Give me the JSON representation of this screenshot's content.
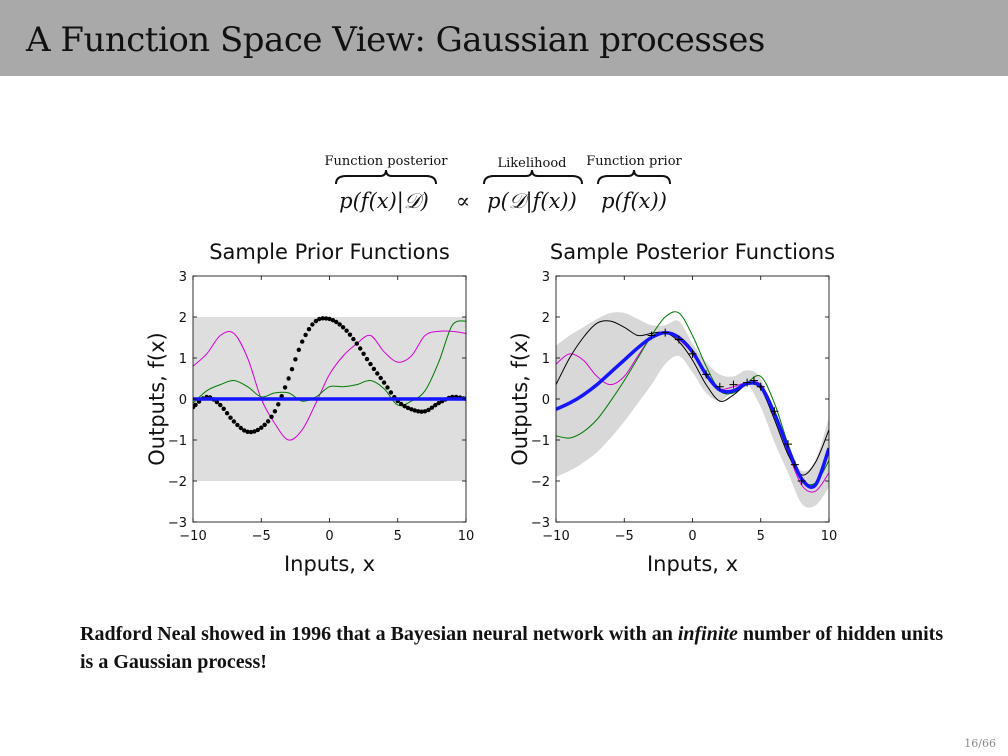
{
  "slide": {
    "title": "A Function Space View: Gaussian processes",
    "page_number": "16/66"
  },
  "equation": {
    "label_posterior": "Function posterior",
    "label_likelihood": "Likelihood",
    "label_prior": "Function prior",
    "posterior": "p(f(x)|𝒟)",
    "propto": "∝",
    "likelihood": "p(𝒟|f(x))",
    "prior": "p(f(x))"
  },
  "caption": {
    "part1": "Radford Neal showed in 1996 that a Bayesian neural network with an ",
    "emph": "infinite",
    "part2": " number of hidden units is a Gaussian process!"
  },
  "chart_data": [
    {
      "type": "line",
      "title": "Sample Prior Functions",
      "xlabel": "Inputs, x",
      "ylabel": "Outputs, f(x)",
      "xlim": [
        -10,
        10
      ],
      "ylim": [
        -3,
        3
      ],
      "xticks": [
        "−10",
        "−5",
        "0",
        "5",
        "10"
      ],
      "yticks": [
        "−3",
        "−2",
        "−1",
        "0",
        "1",
        "2",
        "3"
      ],
      "band": {
        "x": [
          -10,
          10
        ],
        "lower": [
          -2,
          -2
        ],
        "upper": [
          2,
          2
        ],
        "color": "#dedede"
      },
      "series": [
        {
          "color": "#d400d4",
          "style": "thin",
          "x": [
            -10,
            -9,
            -8,
            -7,
            -6,
            -5,
            -4,
            -3,
            -2,
            -1,
            0,
            1,
            2,
            3,
            4,
            5,
            6,
            7,
            8,
            9,
            10
          ],
          "y": [
            0.8,
            1.1,
            1.55,
            1.6,
            1.0,
            0.0,
            -0.6,
            -1.0,
            -0.75,
            -0.1,
            0.6,
            1.05,
            1.35,
            1.55,
            1.15,
            0.9,
            1.05,
            1.55,
            1.65,
            1.65,
            1.6
          ]
        },
        {
          "color": "#007a00",
          "style": "thin",
          "x": [
            -10,
            -9,
            -8,
            -7,
            -6,
            -5,
            -4,
            -3,
            -2,
            -1,
            0,
            1,
            2,
            3,
            4,
            5,
            6,
            7,
            8,
            9,
            10
          ],
          "y": [
            -0.1,
            0.2,
            0.35,
            0.45,
            0.3,
            0.05,
            0.15,
            0.15,
            -0.05,
            0.05,
            0.3,
            0.3,
            0.35,
            0.45,
            0.25,
            -0.15,
            -0.05,
            0.2,
            0.9,
            1.8,
            1.9
          ]
        },
        {
          "color": "#000000",
          "style": "dotted",
          "x": [
            -10,
            -9,
            -8,
            -7,
            -6,
            -5,
            -4,
            -3,
            -2,
            -1,
            0,
            1,
            2,
            3,
            4,
            5,
            6,
            7,
            8,
            9,
            10
          ],
          "y": [
            -0.2,
            0.05,
            -0.15,
            -0.55,
            -0.8,
            -0.7,
            -0.3,
            0.5,
            1.4,
            1.9,
            1.95,
            1.75,
            1.35,
            0.85,
            0.4,
            -0.05,
            -0.25,
            -0.3,
            -0.1,
            0.05,
            0.0
          ]
        },
        {
          "color": "#1515ff",
          "style": "thick",
          "x": [
            -10,
            10
          ],
          "y": [
            0,
            0
          ]
        }
      ]
    },
    {
      "type": "line",
      "title": "Sample Posterior Functions",
      "xlabel": "Inputs, x",
      "ylabel": "Outputs, f(x)",
      "xlim": [
        -10,
        10
      ],
      "ylim": [
        -3,
        3
      ],
      "xticks": [
        "−10",
        "−5",
        "0",
        "5",
        "10"
      ],
      "yticks": [
        "−3",
        "−2",
        "−1",
        "0",
        "1",
        "2",
        "3"
      ],
      "band": {
        "x": [
          -10,
          -9,
          -8,
          -7,
          -6,
          -5,
          -4,
          -3,
          -2,
          -1,
          0,
          1,
          2,
          3,
          4,
          5,
          6,
          7,
          8,
          9,
          10
        ],
        "lower": [
          -1.9,
          -1.75,
          -1.55,
          -1.3,
          -0.95,
          -0.55,
          -0.1,
          0.35,
          0.85,
          1.05,
          0.65,
          0.15,
          -0.05,
          0.2,
          0.35,
          -0.2,
          -1.05,
          -1.8,
          -2.55,
          -2.6,
          -2.15
        ],
        "upper": [
          1.3,
          1.55,
          1.75,
          1.95,
          2.1,
          2.1,
          1.95,
          1.8,
          1.8,
          1.9,
          1.35,
          0.9,
          0.6,
          0.55,
          0.7,
          0.5,
          -0.45,
          -1.2,
          -1.75,
          -1.5,
          -0.45
        ],
        "color": "#d8d8d8"
      },
      "points": {
        "x": [
          -3,
          -2,
          -1,
          0,
          1,
          2,
          3,
          4,
          4.5,
          5,
          6,
          7,
          7.5,
          8
        ],
        "y": [
          1.55,
          1.62,
          1.45,
          1.1,
          0.6,
          0.3,
          0.35,
          0.4,
          0.45,
          0.3,
          -0.3,
          -1.1,
          -1.6,
          -2.0
        ],
        "marker": "+"
      },
      "series": [
        {
          "color": "#d400d4",
          "style": "thin",
          "x": [
            -10,
            -9,
            -8,
            -7,
            -6,
            -5,
            -4,
            -3,
            -2,
            -1,
            0,
            1,
            2,
            3,
            4,
            5,
            6,
            7,
            8,
            9,
            10
          ],
          "y": [
            0.85,
            1.1,
            0.95,
            0.55,
            0.35,
            0.55,
            1.05,
            1.5,
            1.62,
            1.45,
            1.1,
            0.55,
            0.25,
            0.3,
            0.4,
            0.35,
            -0.35,
            -1.3,
            -2.1,
            -2.25,
            -1.8
          ]
        },
        {
          "color": "#007a00",
          "style": "thin",
          "x": [
            -10,
            -9,
            -8,
            -7,
            -6,
            -5,
            -4,
            -3,
            -2,
            -1,
            0,
            1,
            2,
            3,
            4,
            5,
            6,
            7,
            8,
            9,
            10
          ],
          "y": [
            -0.9,
            -0.95,
            -0.8,
            -0.5,
            -0.05,
            0.45,
            1.0,
            1.55,
            2.0,
            2.1,
            1.55,
            0.8,
            0.2,
            0.15,
            0.4,
            0.55,
            -0.1,
            -1.1,
            -1.95,
            -2.05,
            -1.5
          ]
        },
        {
          "color": "#000000",
          "style": "thin",
          "x": [
            -10,
            -9,
            -8,
            -7,
            -6,
            -5,
            -4,
            -3,
            -2,
            -1,
            0,
            1,
            2,
            3,
            4,
            5,
            6,
            7,
            8,
            9,
            10
          ],
          "y": [
            0.35,
            1.0,
            1.5,
            1.85,
            1.9,
            1.75,
            1.55,
            1.6,
            1.62,
            1.4,
            0.95,
            0.35,
            -0.05,
            0.1,
            0.35,
            0.25,
            -0.5,
            -1.35,
            -1.85,
            -1.55,
            -0.75
          ]
        },
        {
          "color": "#1515ff",
          "style": "thick",
          "x": [
            -10,
            -9,
            -8,
            -7,
            -6,
            -5,
            -4,
            -3,
            -2,
            -1,
            0,
            1,
            2,
            3,
            4,
            5,
            6,
            7,
            8,
            9,
            10
          ],
          "y": [
            -0.25,
            -0.1,
            0.1,
            0.35,
            0.65,
            0.95,
            1.25,
            1.5,
            1.62,
            1.5,
            1.15,
            0.6,
            0.22,
            0.2,
            0.38,
            0.3,
            -0.35,
            -1.2,
            -1.95,
            -2.1,
            -1.2
          ]
        }
      ]
    }
  ]
}
